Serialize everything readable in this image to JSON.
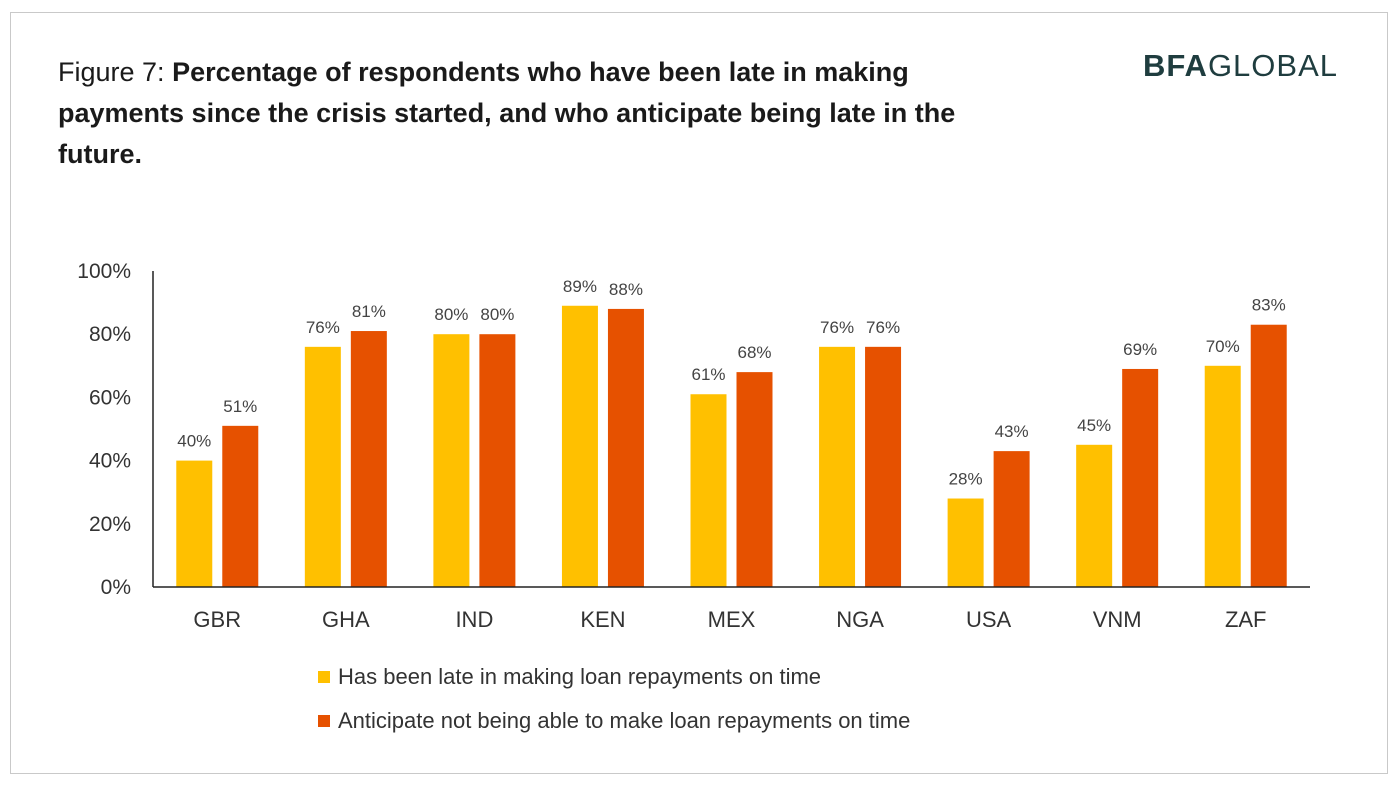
{
  "figure": {
    "prefix": "Figure 7: ",
    "title_bold": "Percentage of respondents who have been late in making payments since the crisis started, and who anticipate being late in the future."
  },
  "logo": {
    "bfa": "BFA",
    "global": "GLOBAL",
    "accent_color": "#1f3d3f"
  },
  "chart_data": {
    "type": "bar",
    "categories": [
      "GBR",
      "GHA",
      "IND",
      "KEN",
      "MEX",
      "NGA",
      "USA",
      "VNM",
      "ZAF"
    ],
    "series": [
      {
        "name": "Has been late in making loan repayments on time",
        "values": [
          40,
          76,
          80,
          89,
          61,
          76,
          28,
          45,
          70
        ],
        "labels": [
          "40%",
          "76%",
          "80%",
          "89%",
          "61%",
          "76%",
          "28%",
          "45%",
          "70%"
        ],
        "color": "#FFC000"
      },
      {
        "name": "Anticipate not being able to make loan repayments on time",
        "values": [
          51,
          81,
          80,
          88,
          68,
          76,
          43,
          69,
          83
        ],
        "labels": [
          "51%",
          "81%",
          "80%",
          "88%",
          "68%",
          "76%",
          "43%",
          "69%",
          "83%"
        ],
        "color": "#E65100"
      }
    ],
    "ylim": [
      0,
      100
    ],
    "yticks": [
      "0%",
      "20%",
      "40%",
      "60%",
      "80%",
      "100%"
    ],
    "ytick_values": [
      0,
      20,
      40,
      60,
      80,
      100
    ],
    "grid": false,
    "legend_position": "bottom"
  }
}
